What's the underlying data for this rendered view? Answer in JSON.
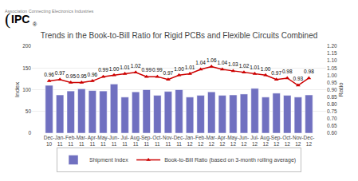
{
  "chart_data": {
    "type": "bar",
    "title": "Trends in the Book-to-Bill Ratio for Rigid PCBs and Flexible Circuits Combined",
    "categories": [
      "Dec-\n10",
      "Jan-\n11",
      "Feb-\n11",
      "Mar-\n11",
      "Apr-\n11",
      "May-\n11",
      "Jun-\n11",
      "Jul-\n11",
      "Aug-\n11",
      "Sep-\n11",
      "Oct-\n11",
      "Nov-\n11",
      "Dec-\n11",
      "Jan-\n12",
      "Feb-\n12",
      "Mar-\n12",
      "Apr-\n12",
      "May-\n12",
      "Jun-\n12",
      "Jul-\n12",
      "Aug-\n12",
      "Sep-\n12",
      "Oct-\n12",
      "Nov-\n12",
      "Dec-\n12"
    ],
    "series": [
      {
        "name": "Shipment Index",
        "type": "bar",
        "color": "#7070c0",
        "values": [
          110,
          88,
          97,
          102,
          98,
          97,
          113,
          83,
          95,
          100,
          87,
          96,
          100,
          83,
          87,
          95,
          87,
          88,
          90,
          103,
          83,
          92,
          87,
          83,
          88
        ]
      },
      {
        "name": "Book-to-Bill Ratio (based on 3-month rolling average)",
        "type": "line",
        "axis": "y2",
        "color": "#cc0000",
        "marker": "triangle-up",
        "line_style": "solid",
        "data_labels": true,
        "values": [
          0.96,
          0.97,
          0.95,
          0.95,
          0.96,
          0.99,
          1.0,
          1.01,
          1.02,
          0.99,
          0.99,
          0.97,
          1.0,
          1.01,
          1.04,
          1.06,
          1.04,
          1.03,
          1.02,
          1.01,
          1.0,
          0.97,
          0.98,
          0.93,
          0.98
        ],
        "value_labels": [
          "0.96",
          "0.97",
          "0.95",
          "0.95",
          "0.96",
          "0.99",
          "1.00",
          "1.01",
          "1.02",
          "0.99",
          "0.99",
          "0.97",
          "1.00",
          "1.01",
          "1.04",
          "1.06",
          "1.04",
          "1.03",
          "1.02",
          "1.01",
          "1.00",
          "0.97",
          "0.98",
          "0.93",
          "0.98"
        ]
      }
    ],
    "ylabel": "Index",
    "y2label": "Ratio",
    "ylim": [
      0,
      200
    ],
    "yticks": [
      0,
      50,
      100,
      150,
      200
    ],
    "y2lim": [
      0.6,
      1.2
    ],
    "y2ticks": [
      {
        "value": 0.6,
        "label": "0.60"
      },
      {
        "value": 0.65,
        "label": "0.65"
      },
      {
        "value": 0.7,
        "label": "0.70"
      },
      {
        "value": 0.75,
        "label": "0.75"
      },
      {
        "value": 0.8,
        "label": "0.80"
      },
      {
        "value": 0.85,
        "label": "0.85"
      },
      {
        "value": 0.9,
        "label": "0.90"
      },
      {
        "value": 0.95,
        "label": "0.95"
      },
      {
        "value": 1.0,
        "label": "1.00"
      },
      {
        "value": 1.05,
        "label": "1.05"
      },
      {
        "value": 1.1,
        "label": "1.10"
      },
      {
        "value": 1.15,
        "label": "1.15"
      },
      {
        "value": 1.2,
        "label": "1.20"
      }
    ],
    "grid": true,
    "legend": "bottom",
    "annotations": [
      "Association Connecting Electronics Industries",
      "(",
      "IPC",
      "®"
    ]
  }
}
